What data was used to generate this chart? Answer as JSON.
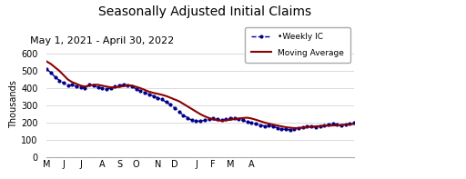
{
  "title": "Seasonally Adjusted Initial Claims",
  "subtitle": "May 1, 2021 - April 30, 2022",
  "ylabel": "Thousands",
  "ylim": [
    0,
    620
  ],
  "yticks": [
    0,
    100,
    200,
    300,
    400,
    500,
    600
  ],
  "background_color": "#ffffff",
  "legend_labels": [
    "Moving Average",
    "•Weekly IC"
  ],
  "ma_color": "#8b0000",
  "weekly_color": "#00008b",
  "x_tick_labels": [
    "M",
    "J",
    "J",
    "A",
    "S",
    "O",
    "N",
    "D",
    "J",
    "F",
    "M",
    "A"
  ],
  "ma_values": [
    555,
    540,
    520,
    500,
    475,
    450,
    435,
    425,
    415,
    410,
    415,
    420,
    420,
    415,
    410,
    405,
    405,
    408,
    412,
    418,
    415,
    408,
    400,
    390,
    380,
    373,
    368,
    362,
    355,
    345,
    335,
    325,
    310,
    295,
    280,
    265,
    250,
    238,
    228,
    220,
    215,
    212,
    215,
    218,
    222,
    225,
    228,
    230,
    225,
    218,
    210,
    202,
    196,
    190,
    185,
    180,
    175,
    172,
    170,
    170,
    172,
    175,
    178,
    180,
    182,
    183,
    184,
    185,
    186,
    188,
    190,
    192,
    194
  ],
  "weekly_values": [
    510,
    490,
    465,
    445,
    430,
    415,
    420,
    410,
    405,
    400,
    420,
    415,
    405,
    400,
    395,
    400,
    410,
    418,
    420,
    415,
    410,
    395,
    385,
    375,
    365,
    355,
    345,
    335,
    320,
    305,
    285,
    265,
    245,
    230,
    215,
    210,
    210,
    215,
    220,
    225,
    220,
    215,
    220,
    225,
    230,
    220,
    215,
    205,
    200,
    195,
    188,
    182,
    185,
    178,
    172,
    165,
    162,
    160,
    165,
    170,
    175,
    180,
    178,
    175,
    180,
    185,
    190,
    195,
    190,
    185,
    190,
    195,
    200
  ],
  "month_tick_positions": [
    0,
    4,
    8,
    13,
    17,
    21,
    26,
    30,
    35,
    39,
    43,
    48
  ],
  "title_fontsize": 10,
  "subtitle_fontsize": 8,
  "ylabel_fontsize": 7,
  "tick_fontsize": 7,
  "legend_fontsize": 6.5
}
